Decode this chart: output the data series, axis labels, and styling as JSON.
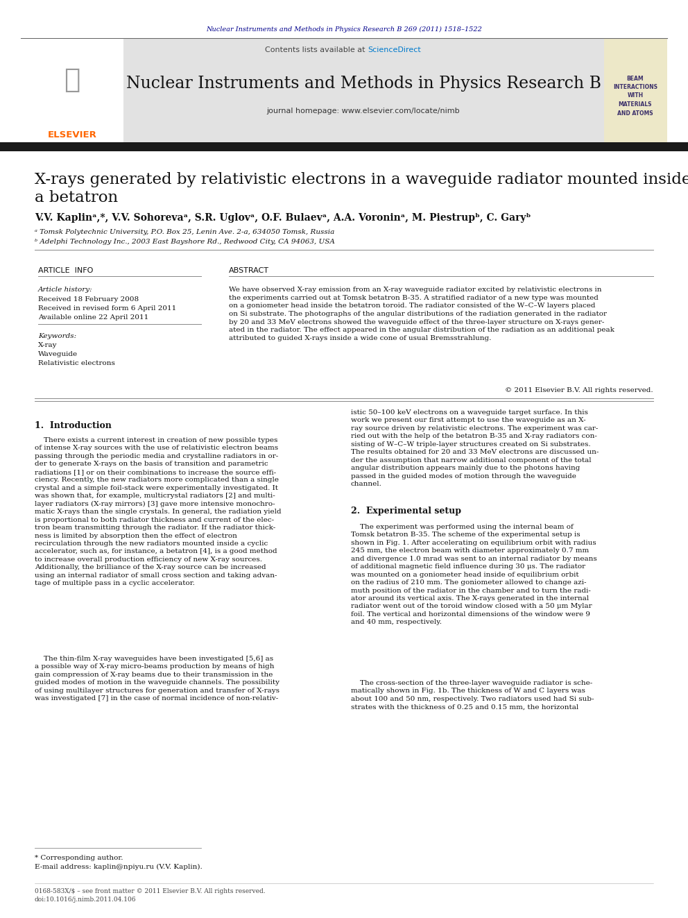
{
  "journal_ref": "Nuclear Instruments and Methods in Physics Research B 269 (2011) 1518–1522",
  "journal_ref_color": "#00008B",
  "header_bg": "#E2E2E2",
  "contents_text": "Contents lists available at ",
  "sciencedirect_text": "ScienceDirect",
  "sciencedirect_color": "#007ACC",
  "journal_name": "Nuclear Instruments and Methods in Physics Research B",
  "journal_homepage": "journal homepage: www.elsevier.com/locate/nimb",
  "black_bar_color": "#1A1A1A",
  "title_line1": "X-rays generated by relativistic electrons in a waveguide radiator mounted inside",
  "title_line2": "a betatron",
  "authors_line": "V.V. Kaplinᵃ,*, V.V. Sohorevaᵃ, S.R. Uglovᵃ, O.F. Bulaevᵃ, A.A. Voroninᵃ, M. Piestrupᵇ, C. Garyᵇ",
  "affil_a": "ᵃ Tomsk Polytechnic University, P.O. Box 25, Lenin Ave. 2-a, 634050 Tomsk, Russia",
  "affil_b": "ᵇ Adelphi Technology Inc., 2003 East Bayshore Rd., Redwood City, CA 94063, USA",
  "article_info_title": "ARTICLE  INFO",
  "abstract_title": "ABSTRACT",
  "article_history_label": "Article history:",
  "received1": "Received 18 February 2008",
  "received2": "Received in revised form 6 April 2011",
  "available": "Available online 22 April 2011",
  "keywords_label": "Keywords:",
  "keyword1": "X-ray",
  "keyword2": "Waveguide",
  "keyword3": "Relativistic electrons",
  "abstract_text": "We have observed X-ray emission from an X-ray waveguide radiator excited by relativistic electrons in\nthe experiments carried out at Tomsk betatron B-35. A stratified radiator of a new type was mounted\non a goniometer head inside the betatron toroid. The radiator consisted of the W–C–W layers placed\non Si substrate. The photographs of the angular distributions of the radiation generated in the radiator\nby 20 and 33 MeV electrons showed the waveguide effect of the three-layer structure on X-rays gener-\nated in the radiator. The effect appeared in the angular distribution of the radiation as an additional peak\nattributed to guided X-rays inside a wide cone of usual Bremsstrahlung.",
  "copyright_text": "© 2011 Elsevier B.V. All rights reserved.",
  "section1_title": "1.  Introduction",
  "section1_col1_p1": "    There exists a current interest in creation of new possible types\nof intense X-ray sources with the use of relativistic electron beams\npassing through the periodic media and crystalline radiators in or-\nder to generate X-rays on the basis of transition and parametric\nradiations [1] or on their combinations to increase the source effi-\nciency. Recently, the new radiators more complicated than a single\ncrystal and a simple foil-stack were experimentally investigated. It\nwas shown that, for example, multicrystal radiators [2] and multi-\nlayer radiators (X-ray mirrors) [3] gave more intensive monochro-\nmatic X-rays than the single crystals. In general, the radiation yield\nis proportional to both radiator thickness and current of the elec-\ntron beam transmitting through the radiator. If the radiator thick-\nness is limited by absorption then the effect of electron\nrecirculation through the new radiators mounted inside a cyclic\naccelerator, such as, for instance, a betatron [4], is a good method\nto increase overall production efficiency of new X-ray sources.\nAdditionally, the brilliance of the X-ray source can be increased\nusing an internal radiator of small cross section and taking advan-\ntage of multiple pass in a cyclic accelerator.",
  "section1_col1_p2": "    The thin-film X-ray waveguides have been investigated [5,6] as\na possible way of X-ray micro-beams production by means of high\ngain compression of X-ray beams due to their transmission in the\nguided modes of motion in the waveguide channels. The possibility\nof using multilayer structures for generation and transfer of X-rays\nwas investigated [7] in the case of normal incidence of non-relativ-",
  "section1_col2_p1": "istic 50–100 keV electrons on a waveguide target surface. In this\nwork we present our first attempt to use the waveguide as an X-\nray source driven by relativistic electrons. The experiment was car-\nried out with the help of the betatron B-35 and X-ray radiators con-\nsisting of W–C–W triple-layer structures created on Si substrates.\nThe results obtained for 20 and 33 MeV electrons are discussed un-\nder the assumption that narrow additional component of the total\nangular distribution appears mainly due to the photons having\npassed in the guided modes of motion through the waveguide\nchannel.",
  "section2_title": "2.  Experimental setup",
  "section2_col2_p1": "    The experiment was performed using the internal beam of\nTomsk betatron B-35. The scheme of the experimental setup is\nshown in Fig. 1. After accelerating on equilibrium orbit with radius\n245 mm, the electron beam with diameter approximately 0.7 mm\nand divergence 1.0 mrad was sent to an internal radiator by means\nof additional magnetic field influence during 30 μs. The radiator\nwas mounted on a goniometer head inside of equilibrium orbit\non the radius of 210 mm. The goniometer allowed to change azi-\nmuth position of the radiator in the chamber and to turn the radi-\nator around its vertical axis. The X-rays generated in the internal\nradiator went out of the toroid window closed with a 50 μm Mylar\nfoil. The vertical and horizontal dimensions of the window were 9\nand 40 mm, respectively.",
  "section2_col2_p2": "    The cross-section of the three-layer waveguide radiator is sche-\nmatically shown in Fig. 1b. The thickness of W and C layers was\nabout 100 and 50 nm, respectively. Two radiators used had Si sub-\nstrates with the thickness of 0.25 and 0.15 mm, the horizontal",
  "footnote_star": "* Corresponding author.",
  "footnote_email": "E-mail address: kaplin@npiyu.ru (V.V. Kaplin).",
  "footer_left": "0168-583X/$ – see front matter © 2011 Elsevier B.V. All rights reserved.",
  "footer_doi": "doi:10.1016/j.nimb.2011.04.106",
  "bg_color": "#FFFFFF",
  "text_color": "#000000",
  "beam_box_bg": "#EDE8C8",
  "beam_box_text": "BEAM\nINTERACTIONS\nWITH\nMATERIALS\nAND ATOMS",
  "beam_box_color": "#3B2F6A",
  "elsevier_color": "#FF6600"
}
